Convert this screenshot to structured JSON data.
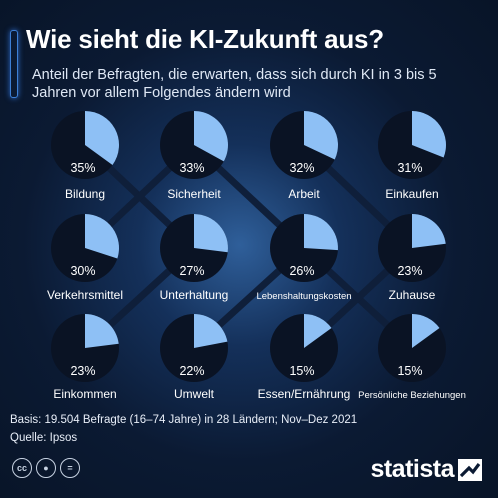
{
  "title": "Wie sieht die KI-Zukunft aus?",
  "subtitle": "Anteil der Befragten, die erwarten, dass sich durch KI in 3 bis 5 Jahren vor allem Folgendes ändern wird",
  "colors": {
    "slice": "#8ec0f5",
    "pie_bg": "#0a1324",
    "line": "#0f1f3a"
  },
  "chart_data": {
    "type": "pie",
    "title": "Wie sieht die KI-Zukunft aus?",
    "unit": "%",
    "categories": [
      "Bildung",
      "Sicherheit",
      "Arbeit",
      "Einkaufen",
      "Verkehrsmittel",
      "Unterhaltung",
      "Lebenshaltungskosten",
      "Zuhause",
      "Einkommen",
      "Umwelt",
      "Essen/Ernährung",
      "Persönliche Beziehungen"
    ],
    "values": [
      35,
      33,
      32,
      31,
      30,
      27,
      26,
      23,
      23,
      22,
      15,
      15
    ],
    "labels": [
      "35%",
      "33%",
      "32%",
      "31%",
      "30%",
      "27%",
      "26%",
      "23%",
      "23%",
      "22%",
      "15%",
      "15%"
    ]
  },
  "footer": {
    "basis": "Basis: 19.504 Befragte (16–74 Jahre) in 28 Ländern; Nov–Dez 2021",
    "source": "Quelle: Ipsos"
  },
  "license_icons": [
    "cc-icon",
    "person-icon",
    "equals-icon"
  ],
  "brand": "statista"
}
